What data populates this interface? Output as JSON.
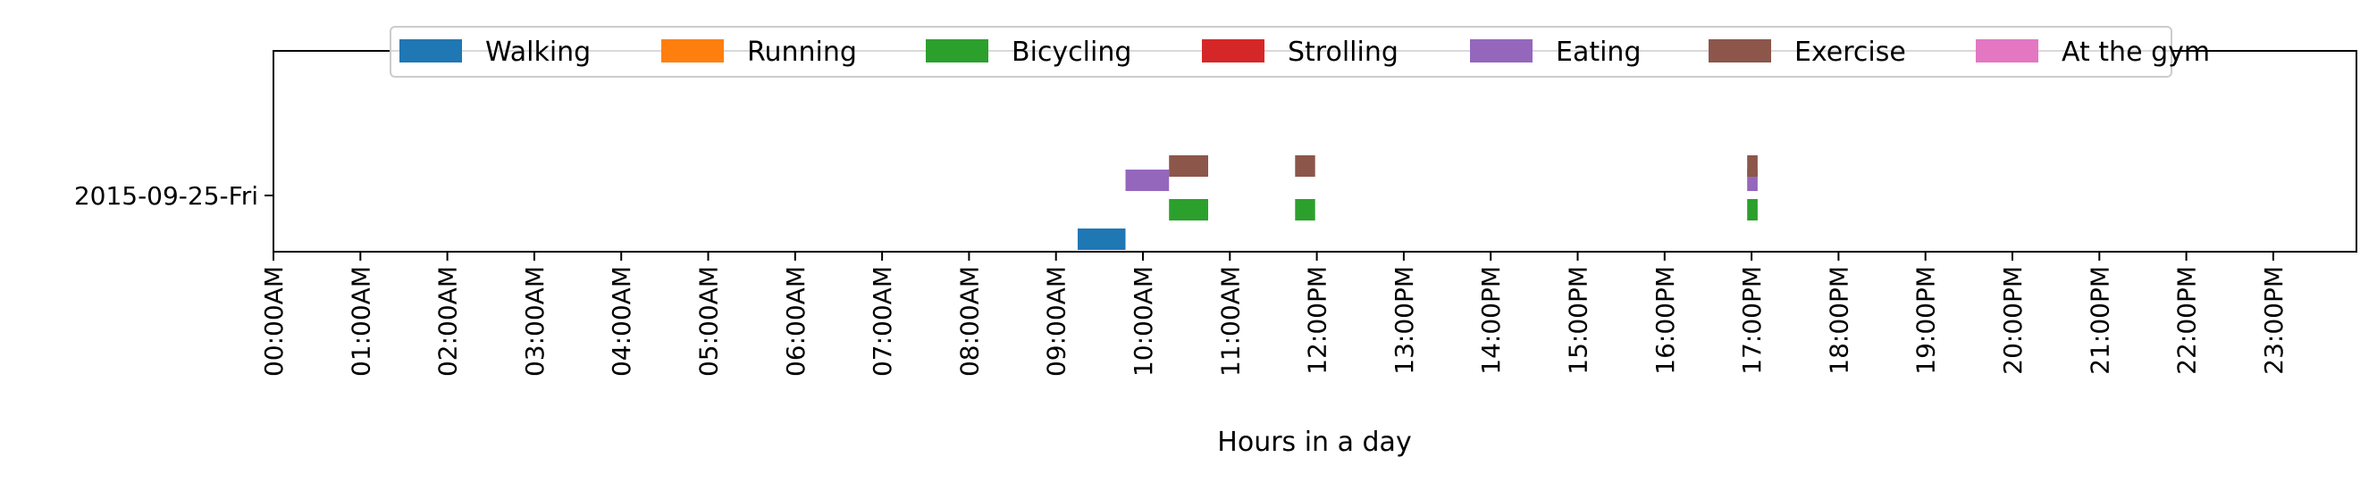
{
  "chart_data": {
    "type": "timeline",
    "title": "",
    "xlabel": "Hours in a day",
    "ylabel": "",
    "xlim": [
      0,
      24
    ],
    "grid": false,
    "legend_position": "top-center",
    "categories": [
      "2015-09-25-Fri"
    ],
    "x_ticks": [
      "00:00AM",
      "01:00AM",
      "02:00AM",
      "03:00AM",
      "04:00AM",
      "05:00AM",
      "06:00AM",
      "07:00AM",
      "08:00AM",
      "09:00AM",
      "10:00AM",
      "11:00AM",
      "12:00PM",
      "13:00PM",
      "14:00PM",
      "15:00PM",
      "16:00PM",
      "17:00PM",
      "18:00PM",
      "19:00PM",
      "20:00PM",
      "21:00PM",
      "22:00PM",
      "23:00PM"
    ],
    "series": [
      {
        "name": "Walking",
        "color": "#1f77b4",
        "segments": [
          {
            "day": "2015-09-25-Fri",
            "start": 9.25,
            "end": 9.8
          }
        ]
      },
      {
        "name": "Running",
        "color": "#ff7f0e",
        "segments": []
      },
      {
        "name": "Bicycling",
        "color": "#2ca02c",
        "segments": [
          {
            "day": "2015-09-25-Fri",
            "start": 10.3,
            "end": 10.75
          },
          {
            "day": "2015-09-25-Fri",
            "start": 11.75,
            "end": 11.98
          },
          {
            "day": "2015-09-25-Fri",
            "start": 16.95,
            "end": 17.07
          }
        ]
      },
      {
        "name": "Strolling",
        "color": "#d62728",
        "segments": []
      },
      {
        "name": "Eating",
        "color": "#9467bd",
        "segments": [
          {
            "day": "2015-09-25-Fri",
            "start": 9.8,
            "end": 10.3
          },
          {
            "day": "2015-09-25-Fri",
            "start": 16.95,
            "end": 17.07
          }
        ]
      },
      {
        "name": "Exercise",
        "color": "#8c564b",
        "segments": [
          {
            "day": "2015-09-25-Fri",
            "start": 10.3,
            "end": 10.75
          },
          {
            "day": "2015-09-25-Fri",
            "start": 11.75,
            "end": 11.98
          },
          {
            "day": "2015-09-25-Fri",
            "start": 16.95,
            "end": 17.07
          }
        ]
      },
      {
        "name": "At the gym",
        "color": "#e377c2",
        "segments": []
      }
    ]
  }
}
